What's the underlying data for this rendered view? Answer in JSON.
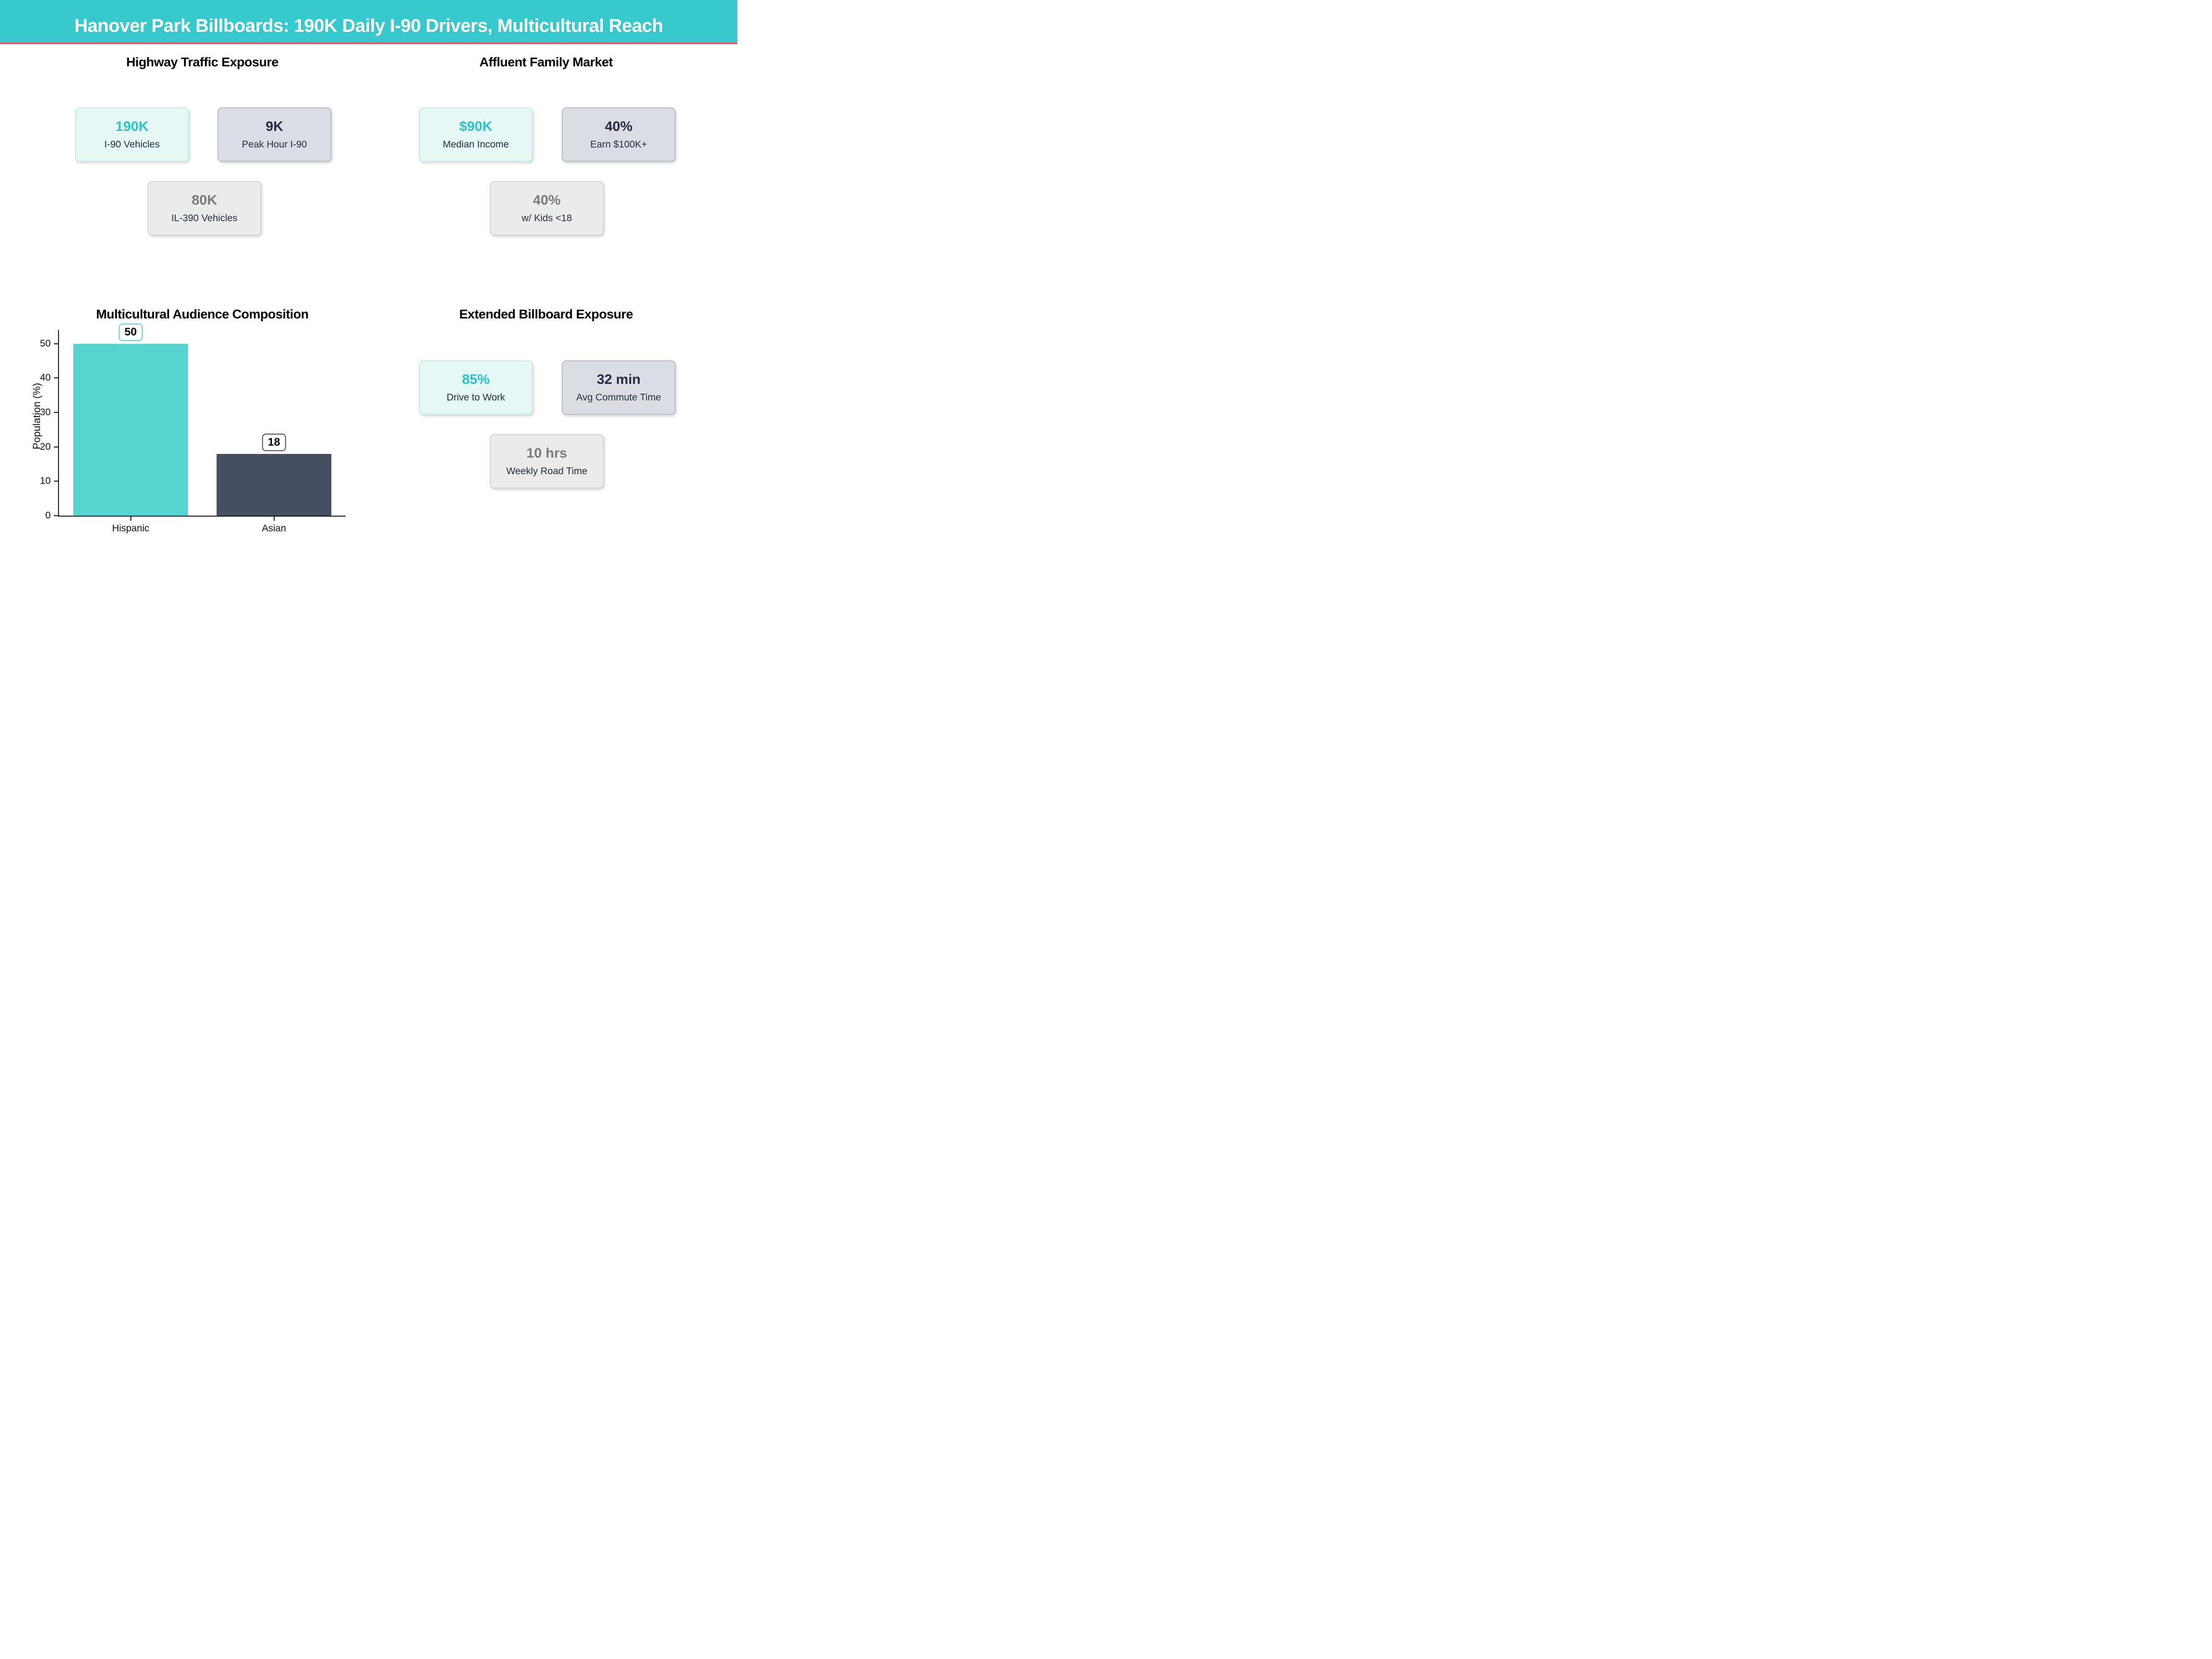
{
  "header": {
    "title": "Hanover Park Billboards: 190K Daily I-90 Drivers, Multicultural Reach"
  },
  "palette": {
    "header_teal": "#35c8cd",
    "accent_pink": "#ee5c72",
    "teal_text": "#2cc3cb",
    "navy_text": "#252a45",
    "gray_text": "#7b7b7b",
    "bar_teal": "#57d3d0",
    "bar_navy": "#474e63"
  },
  "panels": [
    {
      "title": "Highway Traffic Exposure",
      "cards": [
        {
          "value": "190K",
          "label": "I-90 Vehicles",
          "tone": "teal"
        },
        {
          "value": "9K",
          "label": "Peak Hour I-90",
          "tone": "lavender"
        },
        {
          "value": "80K",
          "label": "IL-390 Vehicles",
          "tone": "gray"
        }
      ]
    },
    {
      "title": "Affluent Family Market",
      "cards": [
        {
          "value": "$90K",
          "label": "Median Income",
          "tone": "teal"
        },
        {
          "value": "40%",
          "label": "Earn $100K+",
          "tone": "lavender"
        },
        {
          "value": "40%",
          "label": "w/ Kids <18",
          "tone": "gray"
        }
      ]
    },
    {
      "title": "Extended Billboard Exposure",
      "cards": [
        {
          "value": "85%",
          "label": "Drive to Work",
          "tone": "teal"
        },
        {
          "value": "32 min",
          "label": "Avg Commute Time",
          "tone": "lavender"
        },
        {
          "value": "10 hrs",
          "label": "Weekly Road Time",
          "tone": "gray"
        }
      ]
    }
  ],
  "chart_data": {
    "type": "bar",
    "title": "Multicultural Audience Composition",
    "categories": [
      "Hispanic",
      "Asian"
    ],
    "values": [
      50,
      18
    ],
    "value_labels": [
      "50",
      "18"
    ],
    "bar_colors": [
      "#57d3d0",
      "#474e63"
    ],
    "xlabel": "",
    "ylabel": "Population (%)",
    "yticks": [
      0,
      10,
      20,
      30,
      40,
      50
    ],
    "ylim": [
      0,
      54
    ],
    "grid": false,
    "legend": false
  }
}
